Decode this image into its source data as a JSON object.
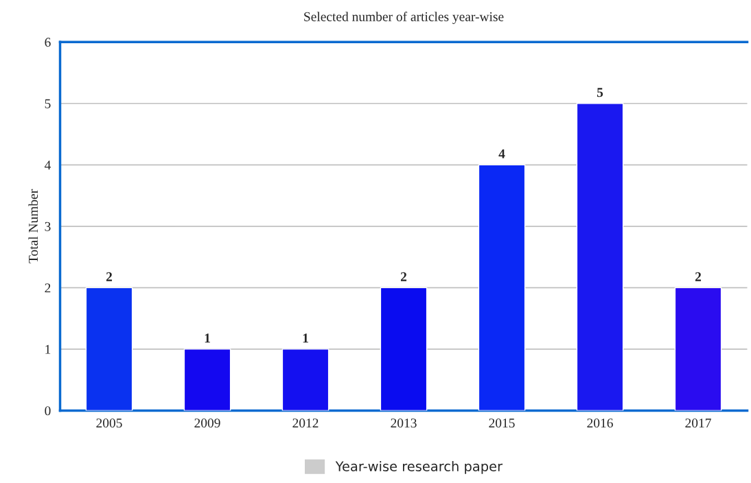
{
  "chart_data": {
    "type": "bar",
    "title": "Selected number of articles year-wise",
    "ylabel": "Total Number",
    "categories": [
      "2005",
      "2009",
      "2012",
      "2013",
      "2015",
      "2016",
      "2017"
    ],
    "series": [
      {
        "name": "Year-wise research paper",
        "color": "#cccccc",
        "colors": [
          "#0a32f0",
          "#1408f0",
          "#1410f0",
          "#0a0cf0",
          "#0a28f5",
          "#1a18f0",
          "#2a0cf0"
        ],
        "values": [
          2,
          1,
          1,
          2,
          4,
          5,
          2
        ]
      }
    ],
    "ylim": [
      0,
      6
    ],
    "yticks": [
      0,
      1,
      2,
      3,
      4,
      5,
      6
    ],
    "grid": "y",
    "data_labels": true,
    "legend": "bottom"
  }
}
